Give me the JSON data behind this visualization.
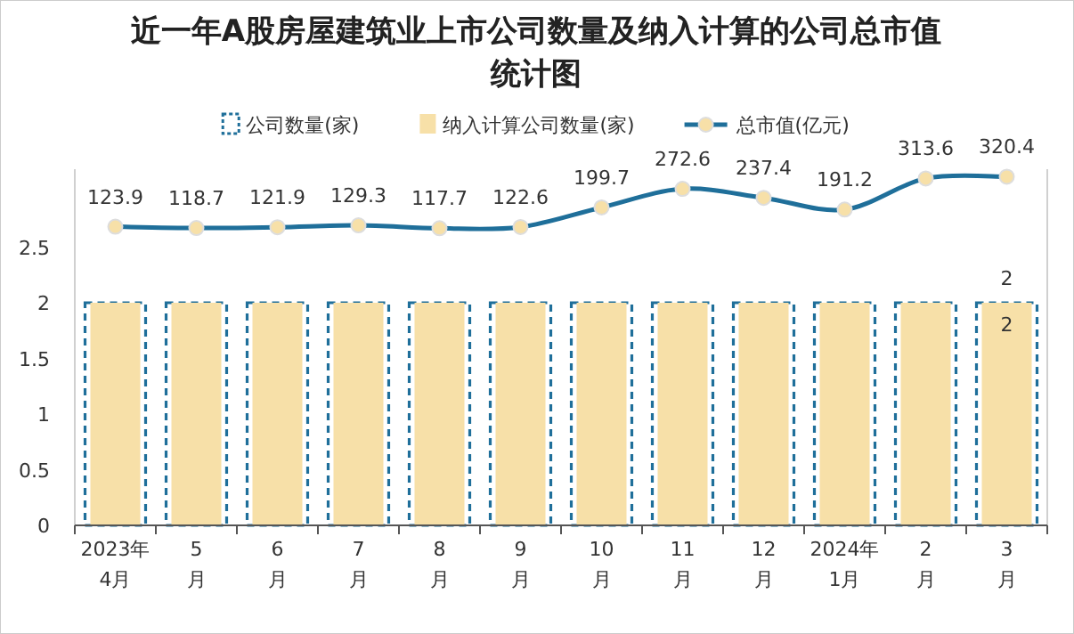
{
  "chart_data": {
    "type": "bar",
    "title": "近一年A股房屋建筑业上市公司数量及纳入计算的公司总市值统计图",
    "categories": [
      "2023年\n4月",
      "5\n月",
      "6\n月",
      "7\n月",
      "8\n月",
      "9\n月",
      "10\n月",
      "11\n月",
      "12\n月",
      "2024年\n1月",
      "2\n月",
      "3\n月"
    ],
    "series": [
      {
        "name": "公司数量(家)",
        "color": "#1f6f9a",
        "line_style": "dashed",
        "values": [
          2,
          2,
          2,
          2,
          2,
          2,
          2,
          2,
          2,
          2,
          2,
          2
        ],
        "value_labels": [
          null,
          null,
          null,
          null,
          null,
          null,
          null,
          null,
          null,
          null,
          null,
          "2"
        ]
      },
      {
        "name": "纳入计算公司数量(家)",
        "color": "#f7e0a8",
        "values": [
          2,
          2,
          2,
          2,
          2,
          2,
          2,
          2,
          2,
          2,
          2,
          2
        ],
        "value_labels": [
          null,
          null,
          null,
          null,
          null,
          null,
          null,
          null,
          null,
          null,
          null,
          "2"
        ]
      },
      {
        "name": "总市值(亿元)",
        "type": "line",
        "axis": "y2",
        "color": "#1f6f9a",
        "marker": "circle",
        "data_labels": true,
        "values": [
          123.9,
          118.7,
          121.9,
          129.3,
          117.7,
          122.6,
          199.7,
          272.6,
          237.4,
          191.2,
          313.6,
          320.4
        ]
      }
    ],
    "ylim": [
      0,
      3.2
    ],
    "yticks": [
      0,
      0.5,
      1,
      1.5,
      2,
      2.5
    ],
    "y2lim": [
      -1050,
      350
    ],
    "tick_labels": "xy",
    "legend": "top",
    "grid": false
  }
}
